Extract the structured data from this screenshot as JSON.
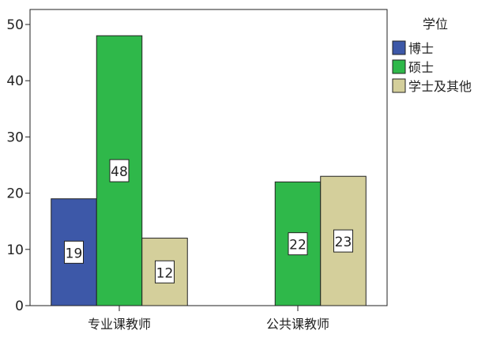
{
  "chart_data": {
    "type": "bar",
    "title": "",
    "xlabel": "",
    "ylabel": "",
    "categories": [
      "专业课教师",
      "公共课教师"
    ],
    "ylim": [
      0,
      50
    ],
    "yticks": [
      0,
      10,
      20,
      30,
      40,
      50
    ],
    "grid": false,
    "legend": {
      "title": "学位",
      "placement": "right"
    },
    "series": [
      {
        "name": "博士",
        "color": "#3d58a8",
        "values": [
          19,
          null
        ]
      },
      {
        "name": "硕士",
        "color": "#2fb84a",
        "values": [
          48,
          22
        ]
      },
      {
        "name": "学士及其他",
        "color": "#d4cf9b",
        "values": [
          12,
          23
        ]
      }
    ]
  }
}
